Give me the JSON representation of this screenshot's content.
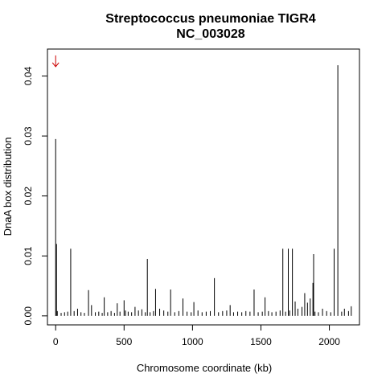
{
  "chart_data": {
    "type": "bar",
    "title": "Streptococcus pneumoniae TIGR4",
    "subtitle": "NC_003028",
    "xlabel": "Chromosome coordinate (kb)",
    "ylabel": "DnaA box distribution",
    "xlim": [
      -60,
      2220
    ],
    "ylim": [
      -0.0015,
      0.0445
    ],
    "x_ticks": [
      0,
      500,
      1000,
      1500,
      2000
    ],
    "x_tick_labels": [
      "0",
      "500",
      "1000",
      "1500",
      "2000"
    ],
    "y_ticks": [
      0,
      0.01,
      0.02,
      0.03,
      0.04
    ],
    "y_tick_labels": [
      "0.00",
      "0.01",
      "0.02",
      "0.03",
      "0.04"
    ],
    "grid": false,
    "legend": "none",
    "marker": {
      "symbol": "↓",
      "x": 0,
      "y": 0.0425,
      "color": "#cc0000"
    },
    "x": [
      0,
      6,
      12,
      40,
      65,
      88,
      110,
      135,
      160,
      185,
      210,
      240,
      262,
      290,
      315,
      340,
      355,
      380,
      405,
      430,
      450,
      470,
      500,
      510,
      530,
      555,
      580,
      605,
      630,
      655,
      670,
      690,
      715,
      730,
      760,
      790,
      820,
      840,
      870,
      900,
      930,
      960,
      990,
      1010,
      1040,
      1070,
      1100,
      1130,
      1160,
      1190,
      1220,
      1250,
      1275,
      1300,
      1330,
      1360,
      1390,
      1420,
      1450,
      1480,
      1510,
      1530,
      1555,
      1580,
      1610,
      1640,
      1660,
      1680,
      1700,
      1710,
      1730,
      1750,
      1770,
      1800,
      1820,
      1840,
      1860,
      1880,
      1885,
      1895,
      1920,
      1950,
      1980,
      2010,
      2035,
      2062,
      2090,
      2110,
      2140,
      2160
    ],
    "values": [
      0.0295,
      0.012,
      0.0008,
      0.0005,
      0.0006,
      0.0007,
      0.0112,
      0.0008,
      0.0012,
      0.0006,
      0.0005,
      0.0043,
      0.0018,
      0.0006,
      0.0007,
      0.0005,
      0.0031,
      0.0006,
      0.0008,
      0.0005,
      0.0021,
      0.0007,
      0.0026,
      0.0009,
      0.0007,
      0.0006,
      0.0015,
      0.0009,
      0.0011,
      0.0006,
      0.0095,
      0.0006,
      0.0008,
      0.0045,
      0.0012,
      0.0009,
      0.0007,
      0.0044,
      0.0006,
      0.0008,
      0.0029,
      0.0007,
      0.0006,
      0.0023,
      0.0009,
      0.0006,
      0.0007,
      0.0008,
      0.0063,
      0.0006,
      0.0008,
      0.0009,
      0.0018,
      0.0006,
      0.0007,
      0.0006,
      0.0008,
      0.0007,
      0.0044,
      0.0006,
      0.0007,
      0.0031,
      0.0008,
      0.0006,
      0.0007,
      0.0009,
      0.0112,
      0.0007,
      0.0112,
      0.0009,
      0.0112,
      0.0024,
      0.0012,
      0.0015,
      0.0038,
      0.0022,
      0.0029,
      0.0055,
      0.0103,
      0.0007,
      0.0006,
      0.0012,
      0.0008,
      0.0006,
      0.0112,
      0.0418,
      0.0007,
      0.0012,
      0.0008,
      0.0016
    ]
  }
}
